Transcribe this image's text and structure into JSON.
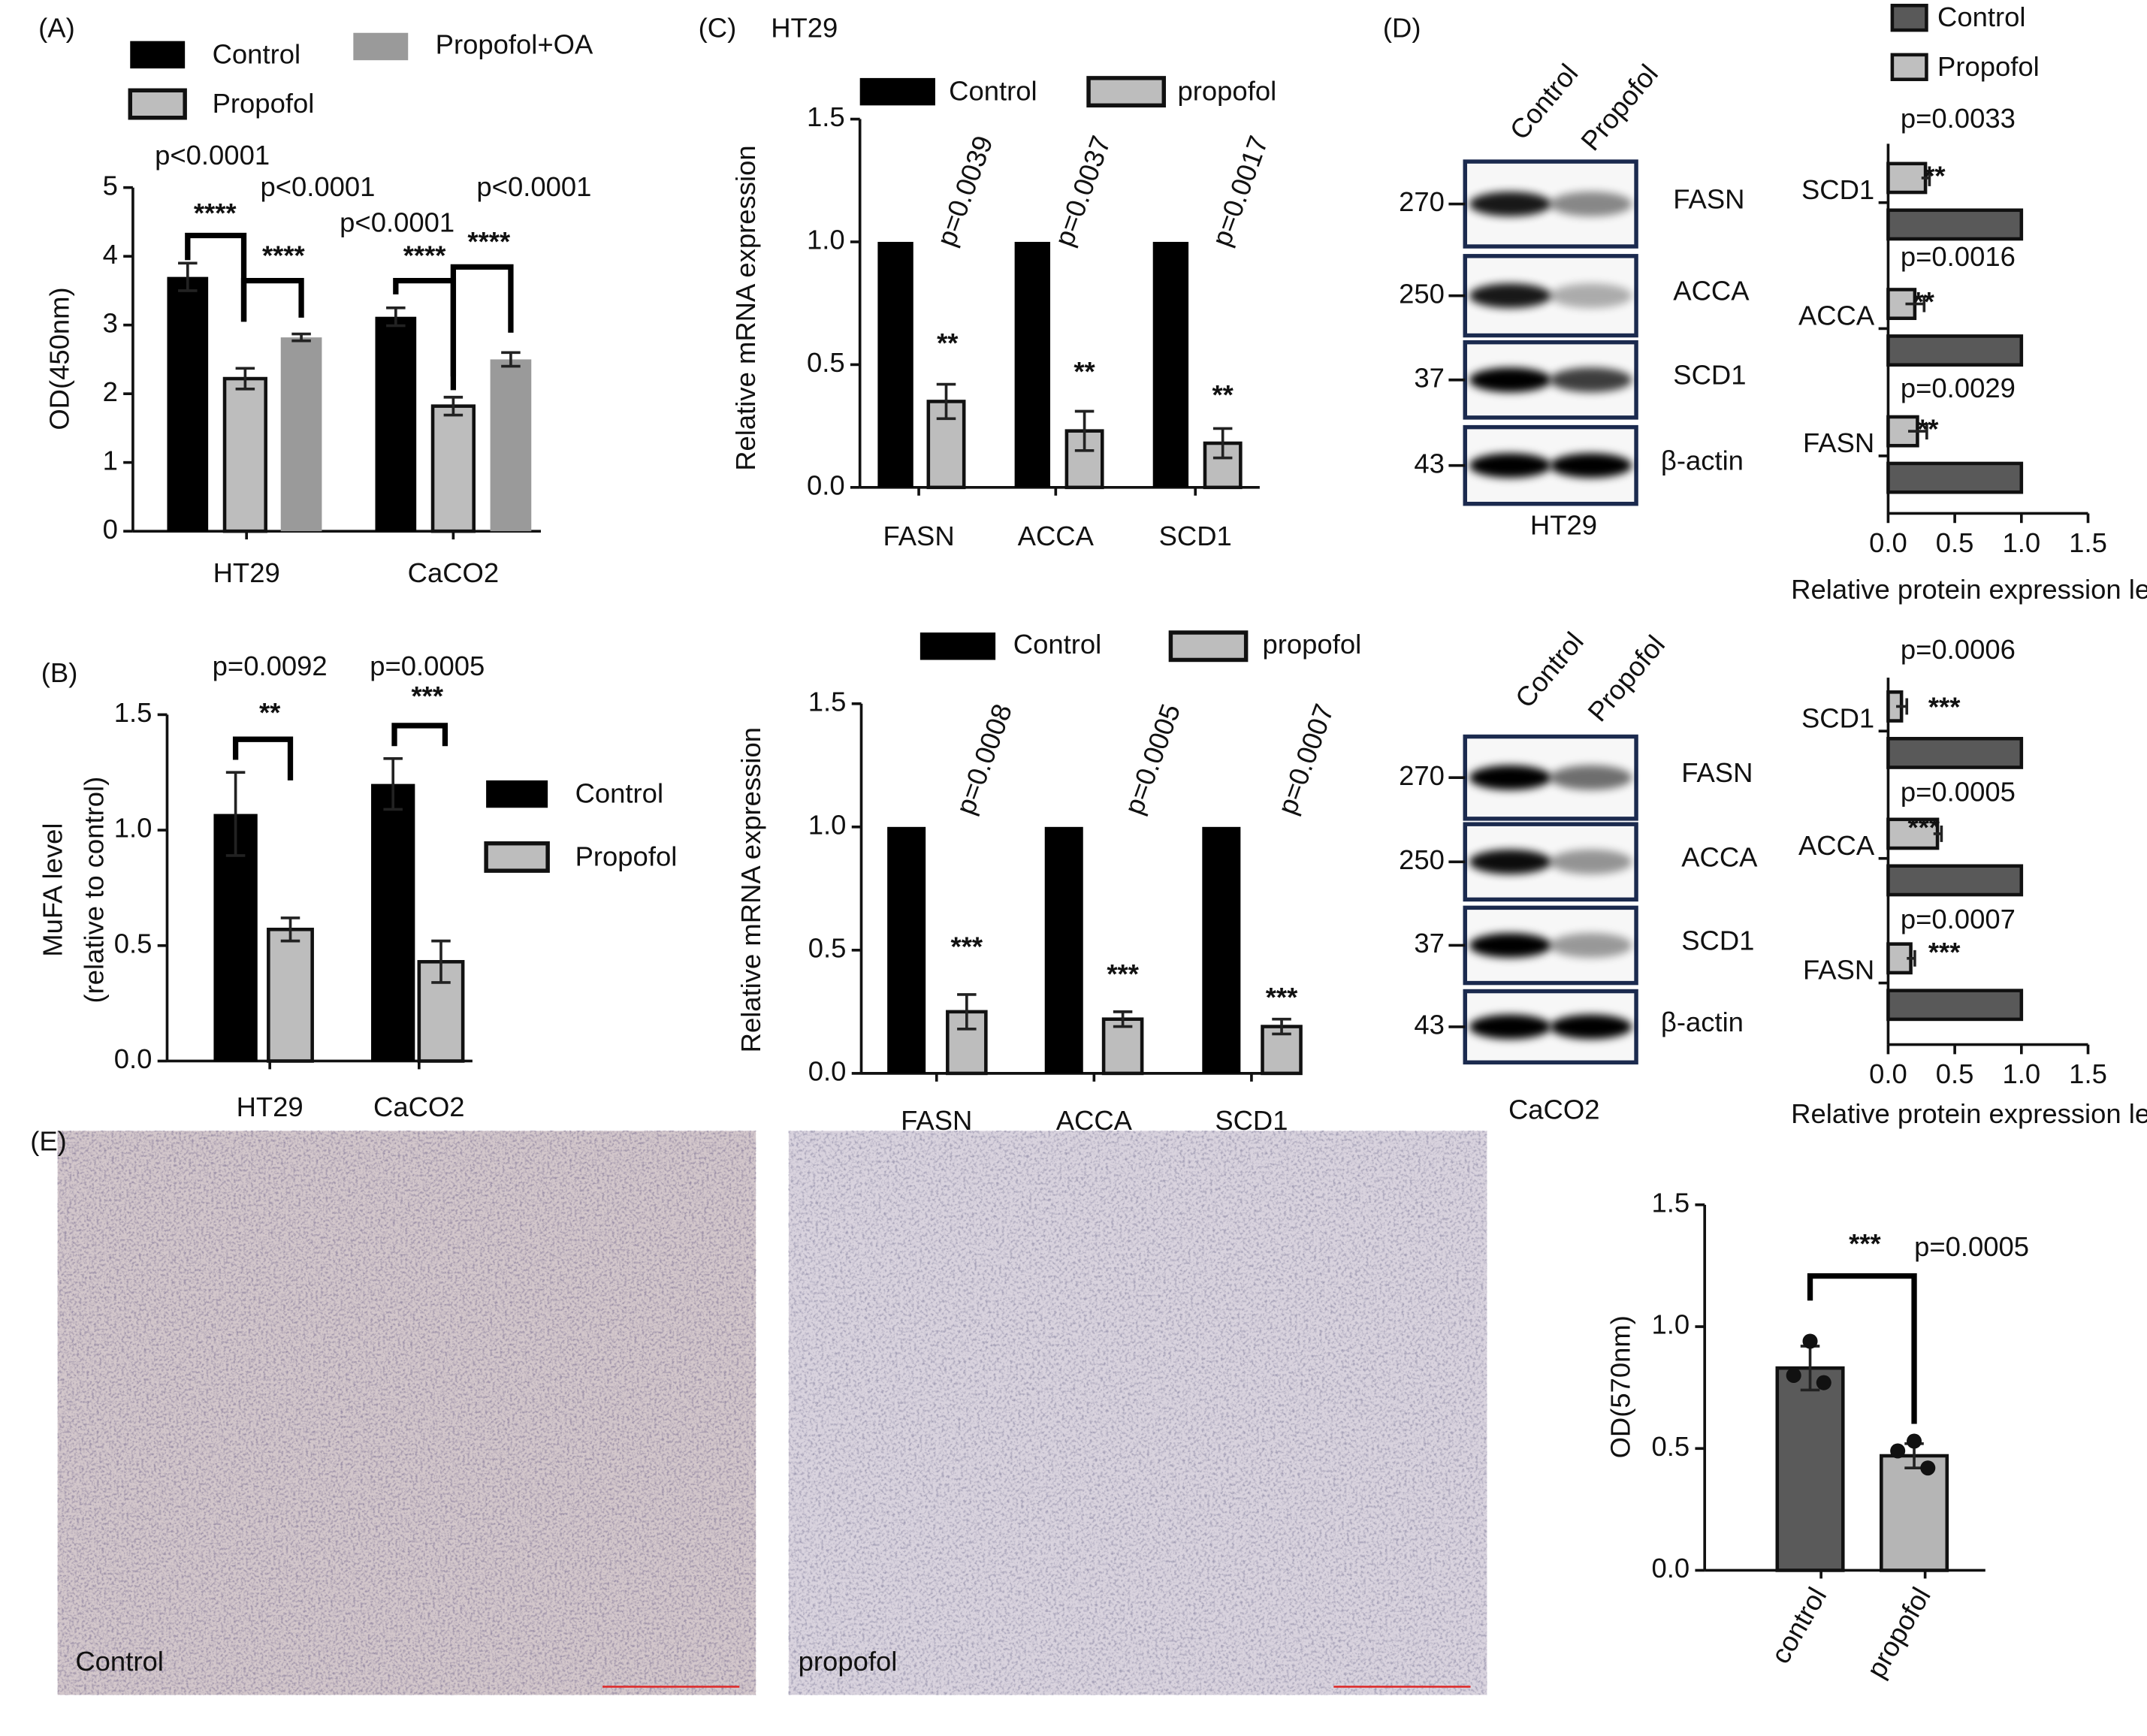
{
  "panels": [
    "(A)",
    "(B)",
    "(C)",
    "(D)",
    "(E)"
  ],
  "chart_data": [
    {
      "type": "bar",
      "categories": [
        "HT29",
        "CaCO2"
      ],
      "ylabel": "OD(450nm)",
      "ylim": [
        0,
        5
      ],
      "yticks": [
        0,
        1,
        2,
        3,
        4,
        5
      ],
      "series": [
        {
          "name": "Control",
          "color": "#000000",
          "values": [
            3.7,
            3.12
          ],
          "errors": [
            0.2,
            0.13
          ]
        },
        {
          "name": "Propofol",
          "color": "#bdbdbd",
          "edgecolor": "#111111",
          "values": [
            2.22,
            1.82
          ],
          "errors": [
            0.15,
            0.13
          ]
        },
        {
          "name": "Propofol+OA",
          "color": "#9a9a9a",
          "values": [
            2.82,
            2.5
          ],
          "errors": [
            0.05,
            0.1
          ]
        }
      ],
      "annotations": [
        "p<0.0001",
        "****",
        "p<0.0001",
        "****",
        "p<0.0001",
        "****",
        "p<0.0001",
        "****"
      ]
    },
    {
      "type": "bar",
      "categories": [
        "HT29",
        "CaCO2"
      ],
      "ylabel": [
        "MuFA level",
        "(relative to control)"
      ],
      "ylim": [
        0,
        1.5
      ],
      "yticks": [
        {
          "value": 0,
          "label": "0.0"
        },
        0.5,
        {
          "value": 1,
          "label": "1.0"
        },
        1.5
      ],
      "series": [
        {
          "name": "Control",
          "color": "#000000",
          "values": [
            1.07,
            1.2
          ],
          "errors": [
            0.18,
            0.11
          ]
        },
        {
          "name": "Propofol",
          "color": "#bdbdbd",
          "edgecolor": "#111111",
          "values": [
            0.57,
            0.43
          ],
          "errors": [
            0.05,
            0.09
          ]
        }
      ],
      "annotations": [
        "p=0.0092",
        "**",
        "p=0.0005",
        "***"
      ]
    },
    {
      "type": "bar",
      "title": "HT29",
      "categories": [
        "FASN",
        "ACCA",
        "SCD1"
      ],
      "ylabel": "Relative mRNA expression",
      "ylim": [
        0,
        1.5
      ],
      "yticks": [
        {
          "value": 0,
          "label": "0.0"
        },
        0.5,
        {
          "value": 1,
          "label": "1.0"
        },
        1.5
      ],
      "series": [
        {
          "name": "Control",
          "color": "#000000",
          "values": [
            1,
            1,
            1
          ]
        },
        {
          "name": "propofol",
          "color": "#bdbdbd",
          "edgecolor": "#111111",
          "values": [
            0.35,
            0.23,
            0.18
          ],
          "errors": [
            0.07,
            0.08,
            0.06
          ]
        }
      ],
      "annotations": [
        "p=0.0039",
        "**",
        "p=0.0037",
        "**",
        "p=0.0017",
        "**"
      ]
    },
    {
      "type": "bar",
      "categories": [
        "FASN",
        "ACCA",
        "SCD1"
      ],
      "ylabel": "Relative mRNA expression",
      "ylim": [
        0,
        1.5
      ],
      "yticks": [
        {
          "value": 0,
          "label": "0.0"
        },
        0.5,
        {
          "value": 1,
          "label": "1.0"
        },
        1.5
      ],
      "series": [
        {
          "name": "Control",
          "color": "#000000",
          "values": [
            1,
            1,
            1
          ]
        },
        {
          "name": "propofol",
          "color": "#bdbdbd",
          "edgecolor": "#111111",
          "values": [
            0.25,
            0.22,
            0.19
          ],
          "errors": [
            0.07,
            0.03,
            0.03
          ]
        }
      ],
      "annotations": [
        "p=0.0008",
        "***",
        "p=0.0005",
        "***",
        "p=0.0007",
        "***"
      ]
    },
    {
      "type": "barh",
      "categories": [
        "SCD1",
        "ACCA",
        "FASN"
      ],
      "xlabel": "Relative protein expression level",
      "xlim": [
        0,
        1.5
      ],
      "xticks": [
        {
          "value": 0,
          "label": "0.0"
        },
        0.5,
        {
          "value": 1,
          "label": "1.0"
        },
        1.5
      ],
      "series": [
        {
          "name": "Control",
          "color": "#595959",
          "edgecolor": "#111111",
          "values": [
            1,
            1,
            1
          ]
        },
        {
          "name": "Propofol",
          "color": "#bfbfbf",
          "edgecolor": "#111111",
          "values": [
            0.28,
            0.2,
            0.22
          ],
          "errors": [
            0.03,
            0.07,
            0.07
          ]
        }
      ],
      "annotations": [
        "p=0.0033",
        "**",
        "p=0.0016",
        "**",
        "p=0.0029",
        "**"
      ]
    },
    {
      "type": "barh",
      "categories": [
        "SCD1",
        "ACCA",
        "FASN"
      ],
      "xlabel": "Relative protein expression level",
      "xlim": [
        0,
        1.5
      ],
      "xticks": [
        {
          "value": 0,
          "label": "0.0"
        },
        0.5,
        {
          "value": 1,
          "label": "1.0"
        },
        1.5
      ],
      "series": [
        {
          "color": "#595959",
          "edgecolor": "#111111",
          "values": [
            1,
            1,
            1
          ]
        },
        {
          "color": "#bfbfbf",
          "edgecolor": "#111111",
          "values": [
            0.1,
            0.37,
            0.17
          ],
          "errors": [
            0.04,
            0.03,
            0.03
          ]
        }
      ],
      "annotations": [
        "p=0.0006",
        "***",
        "p=0.0005",
        "***",
        "p=0.0007",
        "***"
      ]
    },
    {
      "type": "bar",
      "categories": [
        "control",
        "propofol"
      ],
      "ylabel": "OD(570nm)",
      "ylim": [
        0,
        1.5
      ],
      "yticks": [
        {
          "value": 0,
          "label": "0.0"
        },
        0.5,
        {
          "value": 1,
          "label": "1.0"
        },
        1.5
      ],
      "values": [
        0.83,
        0.47
      ],
      "errors": [
        0.09,
        0.05
      ],
      "colors": [
        "#5a5a5a",
        "#b5b5b5"
      ],
      "edgecolor": "#111111",
      "points": [
        [
          0.94,
          0.8,
          0.77
        ],
        [
          0.53,
          0.49,
          0.42
        ]
      ],
      "annotations": [
        "***",
        "p=0.0005"
      ]
    }
  ],
  "blots": [
    {
      "lanes": [
        "Control",
        "Propofol"
      ],
      "markers": [
        "270",
        "250",
        "37",
        "43"
      ],
      "proteins": [
        "FASN",
        "ACCA",
        "SCD1",
        "β-actin"
      ],
      "cell_line": "HT29"
    },
    {
      "lanes": [
        "Control",
        "Propofol"
      ],
      "markers": [
        "270",
        "250",
        "37",
        "43"
      ],
      "proteins": [
        "FASN",
        "ACCA",
        "SCD1",
        "β-actin"
      ],
      "cell_line": "CaCO2"
    }
  ],
  "micrographs": [
    {
      "label": "Control"
    },
    {
      "label": "propofol"
    }
  ]
}
